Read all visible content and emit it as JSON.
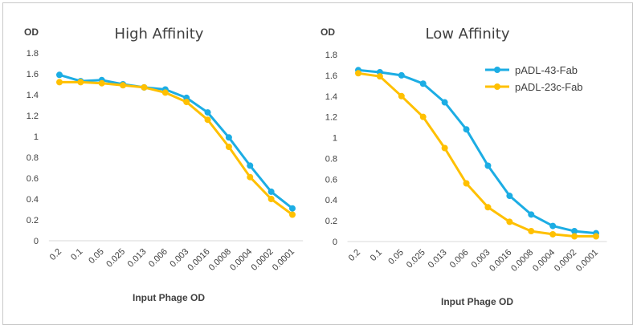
{
  "chart_data": [
    {
      "type": "line",
      "title": "High Affinity",
      "xlabel": "Input Phage OD",
      "ylabel": "OD",
      "ylim": [
        0,
        1.8
      ],
      "yticks": [
        "0",
        "0.2",
        "0.4",
        "0.6",
        "0.8",
        "1",
        "1.2",
        "1.4",
        "1.6",
        "1.8"
      ],
      "grid": false,
      "legend": "none",
      "categories": [
        "0.2",
        "0.1",
        "0.05",
        "0.025",
        "0.013",
        "0.006",
        "0.003",
        "0.0016",
        "0.0008",
        "0.0004",
        "0.0002",
        "0.0001"
      ],
      "series": [
        {
          "color": "#1CADE4",
          "values": [
            1.59,
            1.53,
            1.54,
            1.5,
            1.47,
            1.45,
            1.37,
            1.23,
            0.99,
            0.72,
            0.47,
            0.31
          ]
        },
        {
          "color": "#FFC000",
          "values": [
            1.52,
            1.52,
            1.51,
            1.49,
            1.47,
            1.42,
            1.33,
            1.16,
            0.9,
            0.61,
            0.4,
            0.25
          ]
        }
      ]
    },
    {
      "type": "line",
      "title": "Low Affinity",
      "xlabel": "Input Phage OD",
      "ylabel": "OD",
      "ylim": [
        0,
        1.8
      ],
      "yticks": [
        "0",
        "0.2",
        "0.4",
        "0.6",
        "0.8",
        "1",
        "1.2",
        "1.4",
        "1.6",
        "1.8"
      ],
      "grid": false,
      "legend": "top-right",
      "categories": [
        "0.2",
        "0.1",
        "0.05",
        "0.025",
        "0.013",
        "0.006",
        "0.003",
        "0.0016",
        "0.0008",
        "0.0004",
        "0.0002",
        "0.0001"
      ],
      "series": [
        {
          "name": "pADL-43-Fab",
          "color": "#1CADE4",
          "values": [
            1.65,
            1.63,
            1.6,
            1.52,
            1.34,
            1.08,
            0.73,
            0.44,
            0.26,
            0.15,
            0.1,
            0.08
          ]
        },
        {
          "name": "pADL-23c-Fab",
          "color": "#FFC000",
          "values": [
            1.62,
            1.59,
            1.4,
            1.2,
            0.9,
            0.56,
            0.33,
            0.19,
            0.1,
            0.07,
            0.05,
            0.05
          ]
        }
      ]
    }
  ],
  "style": {
    "axis_color": "#d9d9d9",
    "text_color": "#404040"
  }
}
